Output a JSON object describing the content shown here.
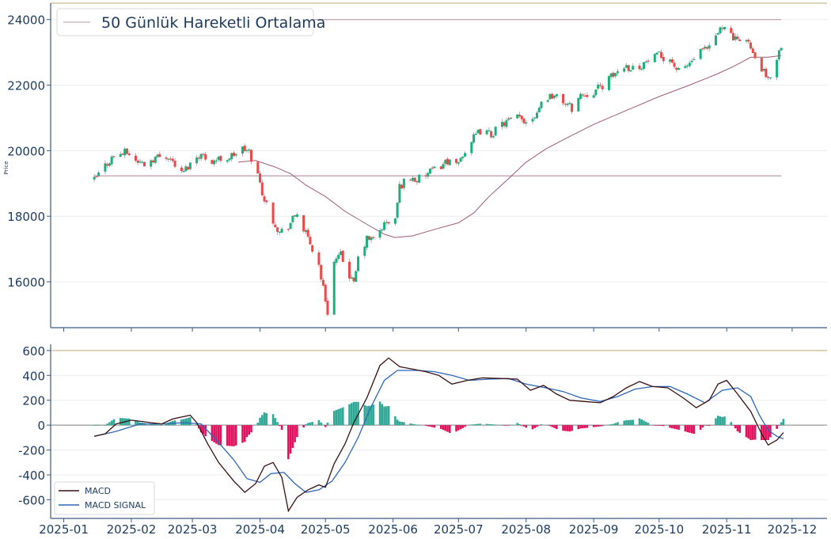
{
  "chart_data": [
    {
      "type": "candlestick",
      "ylabel": "Price",
      "ylim": [
        14600,
        24500
      ],
      "yticks": [
        16000,
        18000,
        20000,
        22000,
        24000
      ],
      "legend": {
        "placement": "top-left",
        "entries": [
          "50 Günlük Hareketli Ortalama"
        ]
      },
      "horizontal_lines": [
        24000,
        19230
      ],
      "colors": {
        "up": "#19b07a",
        "down": "#ef4747",
        "ma": "#a05a78",
        "hline": "#c7aab8",
        "axis": "#3b5a82",
        "text": "#1c3b5e"
      },
      "close_path": [
        [
          "2025-01-15",
          19100
        ],
        [
          "2025-01-20",
          19550
        ],
        [
          "2025-01-24",
          19850
        ],
        [
          "2025-01-30",
          19950
        ],
        [
          "2025-02-03",
          19700
        ],
        [
          "2025-02-07",
          19600
        ],
        [
          "2025-02-12",
          19800
        ],
        [
          "2025-02-18",
          19850
        ],
        [
          "2025-02-24",
          19300
        ],
        [
          "2025-02-28",
          19600
        ],
        [
          "2025-03-04",
          19900
        ],
        [
          "2025-03-10",
          19700
        ],
        [
          "2025-03-18",
          19800
        ],
        [
          "2025-03-24",
          20050
        ],
        [
          "2025-03-27",
          19950
        ],
        [
          "2025-03-31",
          19250
        ],
        [
          "2025-04-03",
          18500
        ],
        [
          "2025-04-07",
          17900
        ],
        [
          "2025-04-10",
          17500
        ],
        [
          "2025-04-14",
          17700
        ],
        [
          "2025-04-18",
          18100
        ],
        [
          "2025-04-21",
          17600
        ],
        [
          "2025-04-25",
          17000
        ],
        [
          "2025-04-28",
          16500
        ],
        [
          "2025-04-30",
          15800
        ],
        [
          "2025-05-02",
          15100
        ],
        [
          "2025-05-05",
          16600
        ],
        [
          "2025-05-08",
          16800
        ],
        [
          "2025-05-12",
          16200
        ],
        [
          "2025-05-14",
          15900
        ],
        [
          "2025-05-16",
          16700
        ],
        [
          "2025-05-20",
          17300
        ],
        [
          "2025-05-23",
          17300
        ],
        [
          "2025-05-28",
          17750
        ],
        [
          "2025-06-02",
          17900
        ],
        [
          "2025-06-04",
          18900
        ],
        [
          "2025-06-08",
          19200
        ],
        [
          "2025-06-12",
          19100
        ],
        [
          "2025-06-17",
          19300
        ],
        [
          "2025-06-22",
          19500
        ],
        [
          "2025-06-26",
          19700
        ],
        [
          "2025-06-30",
          19500
        ],
        [
          "2025-07-03",
          19900
        ],
        [
          "2025-07-07",
          20300
        ],
        [
          "2025-07-11",
          20600
        ],
        [
          "2025-07-16",
          20500
        ],
        [
          "2025-07-22",
          20850
        ],
        [
          "2025-07-28",
          21000
        ],
        [
          "2025-08-01",
          20900
        ],
        [
          "2025-08-05",
          21100
        ],
        [
          "2025-08-09",
          21600
        ],
        [
          "2025-08-13",
          21700
        ],
        [
          "2025-08-18",
          21500
        ],
        [
          "2025-08-22",
          21300
        ],
        [
          "2025-08-26",
          21700
        ],
        [
          "2025-09-01",
          21800
        ],
        [
          "2025-09-05",
          22000
        ],
        [
          "2025-09-10",
          22300
        ],
        [
          "2025-09-15",
          22600
        ],
        [
          "2025-09-20",
          22500
        ],
        [
          "2025-09-25",
          22700
        ],
        [
          "2025-10-01",
          22900
        ],
        [
          "2025-10-06",
          22800
        ],
        [
          "2025-10-10",
          22400
        ],
        [
          "2025-10-14",
          22600
        ],
        [
          "2025-10-20",
          23000
        ],
        [
          "2025-10-24",
          23100
        ],
        [
          "2025-10-28",
          23600
        ],
        [
          "2025-10-31",
          23900
        ],
        [
          "2025-11-03",
          23500
        ],
        [
          "2025-11-06",
          23300
        ],
        [
          "2025-11-10",
          23500
        ],
        [
          "2025-11-13",
          22900
        ],
        [
          "2025-11-17",
          22500
        ],
        [
          "2025-11-20",
          22100
        ],
        [
          "2025-11-23",
          22700
        ],
        [
          "2025-11-26",
          23200
        ]
      ],
      "moving_average": [
        [
          "2025-03-22",
          19650
        ],
        [
          "2025-03-30",
          19700
        ],
        [
          "2025-04-08",
          19500
        ],
        [
          "2025-04-15",
          19300
        ],
        [
          "2025-04-22",
          18950
        ],
        [
          "2025-05-01",
          18600
        ],
        [
          "2025-05-10",
          18150
        ],
        [
          "2025-05-20",
          17750
        ],
        [
          "2025-05-28",
          17450
        ],
        [
          "2025-06-02",
          17350
        ],
        [
          "2025-06-10",
          17400
        ],
        [
          "2025-06-20",
          17600
        ],
        [
          "2025-07-01",
          17800
        ],
        [
          "2025-07-08",
          18100
        ],
        [
          "2025-07-15",
          18600
        ],
        [
          "2025-07-24",
          19150
        ],
        [
          "2025-08-01",
          19650
        ],
        [
          "2025-08-10",
          20050
        ],
        [
          "2025-08-20",
          20400
        ],
        [
          "2025-09-01",
          20800
        ],
        [
          "2025-09-15",
          21200
        ],
        [
          "2025-10-01",
          21650
        ],
        [
          "2025-10-15",
          22000
        ],
        [
          "2025-10-28",
          22350
        ],
        [
          "2025-11-05",
          22600
        ],
        [
          "2025-11-12",
          22850
        ],
        [
          "2025-11-20",
          22850
        ],
        [
          "2025-11-26",
          22900
        ]
      ]
    },
    {
      "type": "line+bar",
      "ylim": [
        -750,
        650
      ],
      "yticks": [
        -600,
        -400,
        -200,
        0,
        200,
        400,
        600
      ],
      "xticks": [
        "2025-01",
        "2025-02",
        "2025-03",
        "2025-04",
        "2025-05",
        "2025-06",
        "2025-07",
        "2025-08",
        "2025-09",
        "2025-10",
        "2025-11",
        "2025-12"
      ],
      "legend": {
        "placement": "bottom-left",
        "entries": [
          "MACD",
          "MACD SIGNAL"
        ]
      },
      "horizontal_lines": [
        600
      ],
      "colors": {
        "macd": "#3a1010",
        "signal": "#2c66b8",
        "hist_pos": "#2fa896",
        "hist_neg": "#e0125f"
      },
      "series": [
        {
          "name": "MACD",
          "points": [
            [
              "2025-01-15",
              -90
            ],
            [
              "2025-01-20",
              -70
            ],
            [
              "2025-01-25",
              10
            ],
            [
              "2025-02-01",
              40
            ],
            [
              "2025-02-10",
              20
            ],
            [
              "2025-02-15",
              10
            ],
            [
              "2025-02-20",
              50
            ],
            [
              "2025-02-28",
              80
            ],
            [
              "2025-03-03",
              20
            ],
            [
              "2025-03-08",
              -150
            ],
            [
              "2025-03-13",
              -300
            ],
            [
              "2025-03-20",
              -450
            ],
            [
              "2025-03-25",
              -540
            ],
            [
              "2025-03-30",
              -470
            ],
            [
              "2025-04-03",
              -330
            ],
            [
              "2025-04-07",
              -300
            ],
            [
              "2025-04-11",
              -420
            ],
            [
              "2025-04-14",
              -690
            ],
            [
              "2025-04-18",
              -580
            ],
            [
              "2025-04-23",
              -520
            ],
            [
              "2025-04-28",
              -480
            ],
            [
              "2025-05-01",
              -500
            ],
            [
              "2025-05-05",
              -310
            ],
            [
              "2025-05-10",
              -150
            ],
            [
              "2025-05-14",
              20
            ],
            [
              "2025-05-20",
              220
            ],
            [
              "2025-05-26",
              480
            ],
            [
              "2025-05-30",
              540
            ],
            [
              "2025-06-04",
              470
            ],
            [
              "2025-06-10",
              450
            ],
            [
              "2025-06-16",
              430
            ],
            [
              "2025-06-22",
              400
            ],
            [
              "2025-06-28",
              330
            ],
            [
              "2025-07-05",
              360
            ],
            [
              "2025-07-12",
              380
            ],
            [
              "2025-07-20",
              375
            ],
            [
              "2025-07-28",
              370
            ],
            [
              "2025-08-03",
              280
            ],
            [
              "2025-08-09",
              320
            ],
            [
              "2025-08-15",
              250
            ],
            [
              "2025-08-21",
              200
            ],
            [
              "2025-08-28",
              190
            ],
            [
              "2025-09-04",
              180
            ],
            [
              "2025-09-10",
              230
            ],
            [
              "2025-09-16",
              300
            ],
            [
              "2025-09-22",
              350
            ],
            [
              "2025-09-28",
              310
            ],
            [
              "2025-10-05",
              300
            ],
            [
              "2025-10-12",
              220
            ],
            [
              "2025-10-18",
              140
            ],
            [
              "2025-10-24",
              200
            ],
            [
              "2025-10-28",
              330
            ],
            [
              "2025-11-01",
              360
            ],
            [
              "2025-11-06",
              250
            ],
            [
              "2025-11-12",
              110
            ],
            [
              "2025-11-17",
              -70
            ],
            [
              "2025-11-20",
              -160
            ],
            [
              "2025-11-24",
              -120
            ],
            [
              "2025-11-27",
              -60
            ]
          ]
        },
        {
          "name": "MACD SIGNAL",
          "points": [
            [
              "2025-01-15",
              -90
            ],
            [
              "2025-01-25",
              -50
            ],
            [
              "2025-02-05",
              10
            ],
            [
              "2025-02-15",
              10
            ],
            [
              "2025-02-25",
              20
            ],
            [
              "2025-03-05",
              10
            ],
            [
              "2025-03-12",
              -120
            ],
            [
              "2025-03-20",
              -280
            ],
            [
              "2025-03-26",
              -430
            ],
            [
              "2025-04-01",
              -460
            ],
            [
              "2025-04-06",
              -390
            ],
            [
              "2025-04-12",
              -380
            ],
            [
              "2025-04-17",
              -470
            ],
            [
              "2025-04-22",
              -540
            ],
            [
              "2025-04-28",
              -520
            ],
            [
              "2025-05-04",
              -450
            ],
            [
              "2025-05-10",
              -300
            ],
            [
              "2025-05-16",
              -100
            ],
            [
              "2025-05-22",
              150
            ],
            [
              "2025-05-28",
              360
            ],
            [
              "2025-06-03",
              440
            ],
            [
              "2025-06-12",
              440
            ],
            [
              "2025-06-20",
              430
            ],
            [
              "2025-06-28",
              400
            ],
            [
              "2025-07-06",
              360
            ],
            [
              "2025-07-15",
              370
            ],
            [
              "2025-07-24",
              375
            ],
            [
              "2025-08-01",
              330
            ],
            [
              "2025-08-10",
              300
            ],
            [
              "2025-08-18",
              270
            ],
            [
              "2025-08-26",
              220
            ],
            [
              "2025-09-04",
              190
            ],
            [
              "2025-09-12",
              230
            ],
            [
              "2025-09-20",
              290
            ],
            [
              "2025-09-28",
              310
            ],
            [
              "2025-10-06",
              310
            ],
            [
              "2025-10-14",
              250
            ],
            [
              "2025-10-22",
              180
            ],
            [
              "2025-10-30",
              280
            ],
            [
              "2025-11-06",
              300
            ],
            [
              "2025-11-12",
              230
            ],
            [
              "2025-11-16",
              80
            ],
            [
              "2025-11-20",
              -40
            ],
            [
              "2025-11-24",
              -90
            ],
            [
              "2025-11-27",
              -110
            ]
          ]
        }
      ]
    }
  ]
}
